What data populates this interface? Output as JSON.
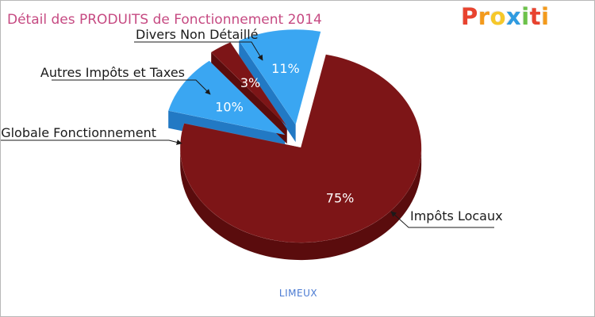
{
  "chart_data": {
    "type": "pie",
    "title": "Détail des PRODUITS de Fonctionnement 2014",
    "subtitle": "LIMEUX",
    "slices": [
      {
        "label": "Impôts Locaux",
        "value": 75,
        "value_label": "75%",
        "color": "#7d1517",
        "side_color": "#5a0c0d"
      },
      {
        "label": "Dotation Globale Fonctionnement",
        "value": 10,
        "value_label": "10%",
        "color": "#3aa6f2",
        "side_color": "#2279c4"
      },
      {
        "label": "Autres Impôts et Taxes",
        "value": 3,
        "value_label": "3%",
        "color": "#7d1517",
        "side_color": "#5a0c0d"
      },
      {
        "label": "Divers Non Détaillé",
        "value": 11,
        "value_label": "11%",
        "color": "#3aa6f2",
        "side_color": "#2279c4"
      }
    ]
  },
  "brand": {
    "letters": [
      {
        "ch": "P",
        "color": "#e8432f"
      },
      {
        "ch": "r",
        "color": "#f39a1c"
      },
      {
        "ch": "o",
        "color": "#f6c82a"
      },
      {
        "ch": "x",
        "color": "#2f9be0"
      },
      {
        "ch": "i",
        "color": "#6cc24a"
      },
      {
        "ch": "t",
        "color": "#e8432f"
      },
      {
        "ch": "i",
        "color": "#f39a1c"
      }
    ]
  }
}
